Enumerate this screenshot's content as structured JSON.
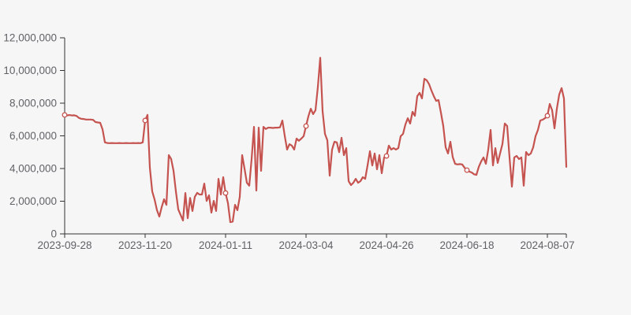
{
  "chart": {
    "background_color": "#f6f6f7",
    "line_color": "#c5534f",
    "marker_fill_color": "#ffffff",
    "axis_color": "#333333",
    "label_color": "#606266"
  },
  "chart_data": {
    "type": "line",
    "title": "",
    "xlabel": "",
    "ylabel": "",
    "grid": false,
    "legend": false,
    "ylim": [
      0,
      12000000
    ],
    "y_tick_labels": [
      "0",
      "2,000,000",
      "4,000,000",
      "6,000,000",
      "8,000,000",
      "10,000,000",
      "12,000,000"
    ],
    "y_tick_values": [
      0,
      2000000,
      4000000,
      6000000,
      8000000,
      10000000,
      12000000
    ],
    "x_tick_labels": [
      "2023-09-28",
      "2023-11-20",
      "2024-01-11",
      "2024-03-04",
      "2024-04-26",
      "2024-06-18",
      "2024-08-07"
    ],
    "x_tick_indices": [
      0,
      34,
      68,
      102,
      136,
      170,
      204
    ],
    "marker_indices": [
      0,
      34,
      68,
      102,
      136,
      170,
      204
    ],
    "marker_values": [
      7280000,
      6940000,
      2500000,
      6600000,
      4770000,
      3900000,
      7230000
    ],
    "values": [
      7280000,
      7250000,
      7270000,
      7250000,
      7260000,
      7220000,
      7100000,
      7040000,
      7030000,
      7000000,
      7000000,
      7000000,
      6980000,
      6850000,
      6820000,
      6800000,
      6400000,
      5600000,
      5560000,
      5550000,
      5560000,
      5550000,
      5550000,
      5560000,
      5550000,
      5550000,
      5560000,
      5550000,
      5550000,
      5560000,
      5550000,
      5560000,
      5550000,
      5600000,
      6940000,
      7280000,
      4050000,
      2600000,
      2100000,
      1450000,
      1060000,
      1640000,
      2120000,
      1780000,
      4820000,
      4580000,
      3860000,
      2600000,
      1500000,
      1160000,
      820000,
      2500000,
      960000,
      2200000,
      1400000,
      2270000,
      2510000,
      2410000,
      2410000,
      3080000,
      2020000,
      2360000,
      1300000,
      2020000,
      1400000,
      3370000,
      2410000,
      3470000,
      2500000,
      1880000,
      720000,
      750000,
      1780000,
      1450000,
      2270000,
      4820000,
      4000000,
      3130000,
      2950000,
      4580000,
      6550000,
      2650000,
      6500000,
      3860000,
      6550000,
      6420000,
      6500000,
      6500000,
      6480000,
      6500000,
      6500000,
      6520000,
      6940000,
      6000000,
      5160000,
      5490000,
      5400000,
      5160000,
      5830000,
      5700000,
      5830000,
      5980000,
      6600000,
      7200000,
      7660000,
      7330000,
      7570000,
      9000000,
      10780000,
      7500000,
      6120000,
      5730000,
      3560000,
      5160000,
      5640000,
      5600000,
      5000000,
      5880000,
      4820000,
      5250000,
      3230000,
      2990000,
      3130000,
      3370000,
      3130000,
      3230000,
      3470000,
      3370000,
      4190000,
      5060000,
      4190000,
      4920000,
      3950000,
      4820000,
      3710000,
      4680000,
      4770000,
      5400000,
      5160000,
      5250000,
      5160000,
      5250000,
      5980000,
      6120000,
      6700000,
      7080000,
      6750000,
      7470000,
      7230000,
      8430000,
      8630000,
      8290000,
      9490000,
      9400000,
      9160000,
      8770000,
      8430000,
      8140000,
      8190000,
      7420000,
      6600000,
      5300000,
      4920000,
      5640000,
      4700000,
      4290000,
      4250000,
      4270000,
      4250000,
      4050000,
      3900000,
      3810000,
      3760000,
      3650000,
      3610000,
      4100000,
      4430000,
      4680000,
      4290000,
      5160000,
      6360000,
      4190000,
      5250000,
      4340000,
      4920000,
      5500000,
      6750000,
      6600000,
      4680000,
      2890000,
      4680000,
      4770000,
      4580000,
      4680000,
      2950000,
      5010000,
      4820000,
      4920000,
      5300000,
      5980000,
      6360000,
      6940000,
      6990000,
      7080000,
      7230000,
      7950000,
      7570000,
      6460000,
      7660000,
      8530000,
      8920000,
      8290000,
      4100000
    ]
  }
}
